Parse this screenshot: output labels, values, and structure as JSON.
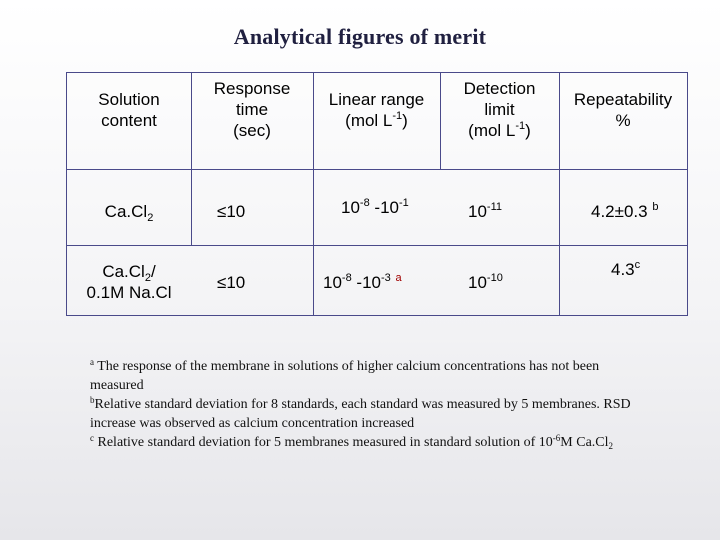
{
  "title": "Analytical figures of merit",
  "headers": {
    "solution": [
      "Solution",
      "content"
    ],
    "response": [
      "Response",
      "time",
      "(sec)"
    ],
    "linear": {
      "line1": "Linear range",
      "line2_pre": "(mol L",
      "line2_sup": "-1",
      "line2_post": ")"
    },
    "detection": {
      "line1": "Detection",
      "line2": "limit",
      "line3_pre": "(mol L",
      "line3_sup": "-1",
      "line3_post": ")"
    },
    "repeatability": [
      "Repeatability",
      "%"
    ]
  },
  "rows": [
    {
      "solution_base": "Ca.Cl",
      "solution_sub": "2",
      "solution_rest": "",
      "solution_line2": "",
      "response": "≤10",
      "linear_a": "10",
      "linear_a_exp": "-8",
      "linear_sep": " -10",
      "linear_b_exp": "-1",
      "linear_note": "",
      "detection": "10",
      "detection_exp": "-11",
      "repeat": "4.2±0.3",
      "repeat_note": "b"
    },
    {
      "solution_base": "Ca.Cl",
      "solution_sub": "2",
      "solution_rest": "/",
      "solution_line2": "0.1M Na.Cl",
      "response": "≤10",
      "linear_a": "10",
      "linear_a_exp": "-8",
      "linear_sep": " -10",
      "linear_b_exp": "-3",
      "linear_note": "a",
      "detection": "10",
      "detection_exp": "-10",
      "repeat": "4.3",
      "repeat_note": "c"
    }
  ],
  "notes": {
    "a_mark": "a",
    "a_text": " The response of the membrane in solutions of higher calcium concentrations has not been measured",
    "b_mark": "b",
    "b_text": "Relative standard deviation for 8 standards, each standard was measured by 5 membranes. RSD increase was observed as calcium concentration increased",
    "c_mark": "c",
    "c_text_pre": " Relative standard deviation for 5 membranes measured in standard solution of 10",
    "c_exp": "-6",
    "c_text_mid": "M Ca.Cl",
    "c_sub": "2"
  }
}
